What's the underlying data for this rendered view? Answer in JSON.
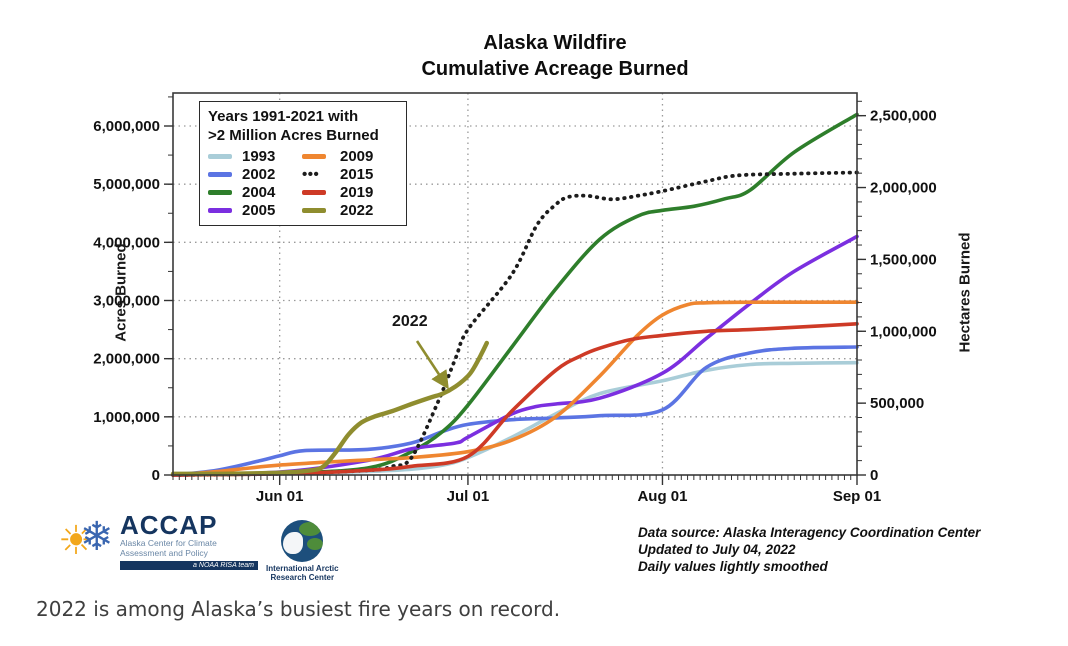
{
  "page": {
    "caption": "2022 is among Alaska’s busiest fire years on record."
  },
  "figure": {
    "title_line1": "Alaska Wildfire",
    "title_line2": "Cumulative Acreage Burned",
    "annotation_label": "2022",
    "source_line1": "Data source: Alaska Interagency Coordination Center",
    "source_line2": "Updated to July 04, 2022",
    "source_line3": "Daily values lightly smoothed"
  },
  "logos": {
    "accap_name": "ACCAP",
    "accap_sub1": "Alaska Center for Climate",
    "accap_sub2": "Assessment and Policy",
    "accap_banner": "a NOAA RISA team",
    "iarc_line1": "International Arctic",
    "iarc_line2": "Research Center"
  },
  "chart_data": {
    "type": "line",
    "title": "Alaska Wildfire Cumulative Acreage Burned",
    "ylabel": "Acres Burned",
    "ylabel_right": "Hectares Burned",
    "legend_title_line1": "Years 1991-2021 with",
    "legend_title_line2": ">2 Million Acres Burned",
    "grid": "dotted, at each month and each 1,000,000 acres",
    "legend_position": "upper-left inside plot",
    "x_axis": {
      "unit": "date, day index counted from May 15",
      "major_ticks": [
        {
          "label": "Jun 01",
          "day": 17
        },
        {
          "label": "Jul 01",
          "day": 47
        },
        {
          "label": "Aug 01",
          "day": 78
        },
        {
          "label": "Sep 01",
          "day": 109
        }
      ],
      "minor_tick_every_days": 1,
      "domain_days": [
        0,
        109
      ]
    },
    "y_axis_left": {
      "unit": "acres",
      "tick_labels": [
        "0",
        "1,000,000",
        "2,000,000",
        "3,000,000",
        "4,000,000",
        "5,000,000",
        "6,000,000"
      ],
      "tick_values_million_acres": [
        0,
        1,
        2,
        3,
        4,
        5,
        6
      ],
      "minor_step_million_acres": 0.5,
      "ylim_million_acres": [
        0,
        6.57
      ]
    },
    "y_axis_right": {
      "unit": "hectares",
      "tick_labels": [
        "0",
        "500,000",
        "1,000,000",
        "1,500,000",
        "2,000,000",
        "2,500,000"
      ],
      "tick_values_million_hectares": [
        0,
        0.5,
        1.0,
        1.5,
        2.0,
        2.5
      ],
      "minor_step_million_hectares": 0.1,
      "acres_per_hectare": 2.47105
    },
    "series_unit": "points are [day index from May 15, cumulative million acres]",
    "series": [
      {
        "name": "1993",
        "color": "#a9cdd8",
        "style": "solid",
        "points": [
          [
            0,
            0
          ],
          [
            7,
            0.01
          ],
          [
            17,
            0.02
          ],
          [
            24,
            0.04
          ],
          [
            31,
            0.06
          ],
          [
            38,
            0.1
          ],
          [
            43,
            0.17
          ],
          [
            47,
            0.3
          ],
          [
            54,
            0.65
          ],
          [
            61,
            1.05
          ],
          [
            68,
            1.4
          ],
          [
            78,
            1.62
          ],
          [
            85,
            1.8
          ],
          [
            92,
            1.9
          ],
          [
            99,
            1.92
          ],
          [
            109,
            1.93
          ]
        ]
      },
      {
        "name": "2002",
        "color": "#5b74e3",
        "style": "solid",
        "points": [
          [
            0,
            0
          ],
          [
            7,
            0.08
          ],
          [
            14,
            0.25
          ],
          [
            17,
            0.33
          ],
          [
            21,
            0.42
          ],
          [
            31,
            0.44
          ],
          [
            38,
            0.55
          ],
          [
            43,
            0.75
          ],
          [
            47,
            0.87
          ],
          [
            54,
            0.95
          ],
          [
            61,
            0.98
          ],
          [
            68,
            1.02
          ],
          [
            78,
            1.12
          ],
          [
            85,
            1.85
          ],
          [
            92,
            2.1
          ],
          [
            99,
            2.18
          ],
          [
            109,
            2.2
          ]
        ]
      },
      {
        "name": "2004",
        "color": "#2e7e2b",
        "style": "solid",
        "points": [
          [
            0,
            0
          ],
          [
            17,
            0.03
          ],
          [
            31,
            0.12
          ],
          [
            38,
            0.4
          ],
          [
            43,
            0.75
          ],
          [
            47,
            1.2
          ],
          [
            54,
            2.2
          ],
          [
            61,
            3.2
          ],
          [
            68,
            4.05
          ],
          [
            74,
            4.45
          ],
          [
            78,
            4.55
          ],
          [
            83,
            4.62
          ],
          [
            88,
            4.75
          ],
          [
            92,
            4.9
          ],
          [
            99,
            5.55
          ],
          [
            109,
            6.2
          ]
        ]
      },
      {
        "name": "2005",
        "color": "#7b2fe0",
        "style": "solid",
        "points": [
          [
            0,
            0
          ],
          [
            17,
            0.05
          ],
          [
            31,
            0.25
          ],
          [
            38,
            0.45
          ],
          [
            45,
            0.55
          ],
          [
            47,
            0.65
          ],
          [
            54,
            1.05
          ],
          [
            58,
            1.18
          ],
          [
            61,
            1.22
          ],
          [
            68,
            1.32
          ],
          [
            78,
            1.75
          ],
          [
            85,
            2.35
          ],
          [
            92,
            2.95
          ],
          [
            99,
            3.5
          ],
          [
            109,
            4.1
          ]
        ]
      },
      {
        "name": "2009",
        "color": "#ef8630",
        "style": "solid",
        "points": [
          [
            0,
            0
          ],
          [
            7,
            0.06
          ],
          [
            17,
            0.17
          ],
          [
            31,
            0.26
          ],
          [
            38,
            0.3
          ],
          [
            47,
            0.4
          ],
          [
            54,
            0.6
          ],
          [
            61,
            1.0
          ],
          [
            68,
            1.7
          ],
          [
            74,
            2.4
          ],
          [
            78,
            2.75
          ],
          [
            82,
            2.93
          ],
          [
            85,
            2.96
          ],
          [
            92,
            2.97
          ],
          [
            109,
            2.97
          ]
        ]
      },
      {
        "name": "2015",
        "color": "#1c1c1c",
        "style": "dotted",
        "points": [
          [
            0,
            0
          ],
          [
            17,
            0.02
          ],
          [
            31,
            0.08
          ],
          [
            35,
            0.15
          ],
          [
            38,
            0.3
          ],
          [
            42,
            1.2
          ],
          [
            45,
            2.0
          ],
          [
            47,
            2.5
          ],
          [
            54,
            3.45
          ],
          [
            58,
            4.3
          ],
          [
            61,
            4.65
          ],
          [
            63,
            4.78
          ],
          [
            66,
            4.8
          ],
          [
            70,
            4.74
          ],
          [
            74,
            4.8
          ],
          [
            78,
            4.88
          ],
          [
            85,
            5.05
          ],
          [
            90,
            5.15
          ],
          [
            99,
            5.18
          ],
          [
            109,
            5.2
          ]
        ]
      },
      {
        "name": "2019",
        "color": "#ce3a26",
        "style": "solid",
        "points": [
          [
            0,
            0
          ],
          [
            17,
            0.02
          ],
          [
            31,
            0.08
          ],
          [
            38,
            0.15
          ],
          [
            47,
            0.32
          ],
          [
            54,
            1.1
          ],
          [
            61,
            1.8
          ],
          [
            65,
            2.05
          ],
          [
            68,
            2.18
          ],
          [
            73,
            2.33
          ],
          [
            78,
            2.4
          ],
          [
            85,
            2.47
          ],
          [
            92,
            2.5
          ],
          [
            99,
            2.54
          ],
          [
            109,
            2.6
          ]
        ]
      },
      {
        "name": "2022",
        "color": "#8f8d2f",
        "style": "solid",
        "points": [
          [
            0,
            0.02
          ],
          [
            7,
            0.02
          ],
          [
            17,
            0.04
          ],
          [
            22,
            0.08
          ],
          [
            24,
            0.15
          ],
          [
            26,
            0.4
          ],
          [
            28,
            0.7
          ],
          [
            30,
            0.9
          ],
          [
            32,
            1.0
          ],
          [
            35,
            1.1
          ],
          [
            38,
            1.22
          ],
          [
            41,
            1.33
          ],
          [
            43,
            1.4
          ],
          [
            45,
            1.52
          ],
          [
            47,
            1.7
          ],
          [
            48,
            1.85
          ],
          [
            49,
            2.05
          ],
          [
            50,
            2.27
          ]
        ]
      }
    ]
  }
}
